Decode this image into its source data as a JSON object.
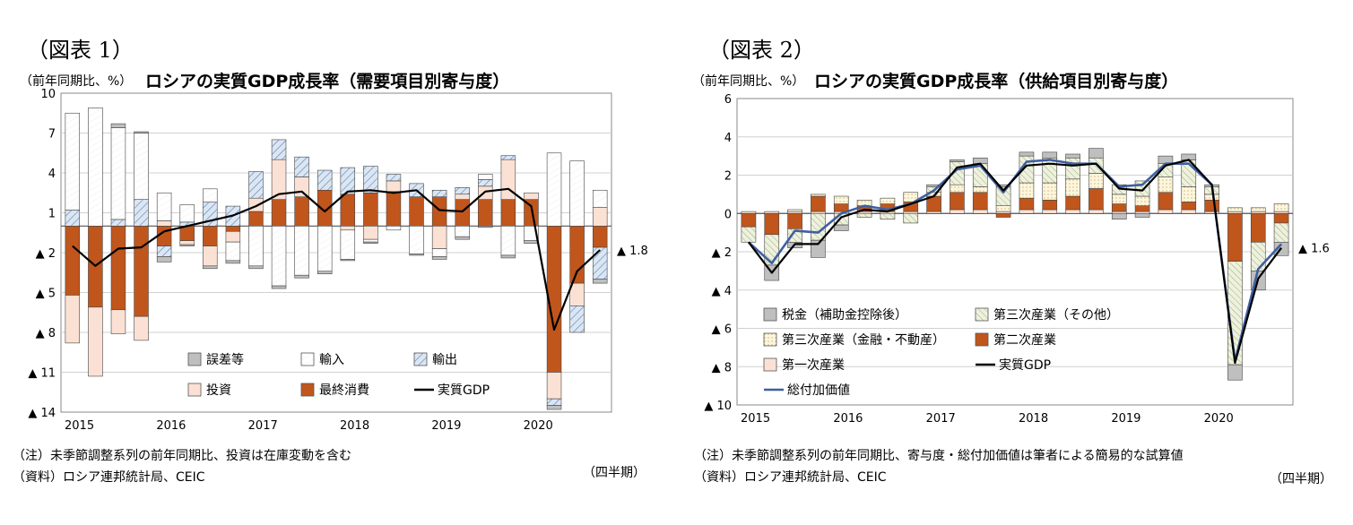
{
  "chart_data": [
    {
      "type": "bar",
      "fig_label": "（図表 1）",
      "title": "ロシアの実質GDP成長率（需要項目別寄与度）",
      "ylabel": "（前年同期比、%）",
      "ylim": [
        -14,
        10
      ],
      "yticks": [
        10,
        7,
        4,
        1,
        -2,
        -5,
        -8,
        -11,
        -14
      ],
      "ytick_labels": [
        "10",
        "7",
        "4",
        "1",
        "▲ 2",
        "▲ 5",
        "▲ 8",
        "▲ 11",
        "▲ 14"
      ],
      "year_labels": [
        "2015",
        "2016",
        "2017",
        "2018",
        "2019",
        "2020"
      ],
      "stack_order": [
        "最終消費",
        "投資",
        "輸出",
        "輸入",
        "誤差等"
      ],
      "series": [
        {
          "name": "最終消費",
          "color": "#c0561c",
          "values": [
            -5.2,
            -6.1,
            -6.3,
            -6.8,
            -1.5,
            -1.1,
            -1.5,
            -0.4,
            1.1,
            2.0,
            2.2,
            2.7,
            2.4,
            2.5,
            2.6,
            2.2,
            2.2,
            2.0,
            2.0,
            2.0,
            2.0,
            -11.0,
            -4.3,
            -1.6
          ]
        },
        {
          "name": "投資",
          "color": "#fbe1d4",
          "values": [
            -3.6,
            -5.2,
            -1.8,
            -1.8,
            0.4,
            -0.3,
            -1.5,
            -0.8,
            1.0,
            3.0,
            1.5,
            0.0,
            -0.3,
            -1.0,
            0.8,
            0.0,
            -1.7,
            0.4,
            1.0,
            3.0,
            0.5,
            -2.0,
            -1.7,
            1.4
          ]
        },
        {
          "name": "輸出",
          "color": "#ffffff",
          "values": [
            1.2,
            0.0,
            0.5,
            2.0,
            -0.8,
            0.3,
            1.8,
            1.5,
            2.0,
            1.5,
            1.5,
            1.5,
            2.0,
            2.0,
            0.5,
            1.0,
            0.5,
            0.5,
            0.5,
            0.3,
            0.0,
            -0.5,
            -2.0,
            -2.4
          ]
        },
        {
          "name": "輸入",
          "color": "#ffffff",
          "values": [
            7.3,
            8.9,
            6.9,
            5.0,
            2.1,
            1.3,
            1.0,
            -1.4,
            -3.0,
            -4.5,
            -3.7,
            -3.4,
            -2.2,
            -0.2,
            -0.3,
            -2.1,
            -0.6,
            -0.8,
            0.4,
            -2.2,
            -1.1,
            5.5,
            4.9,
            1.3
          ]
        },
        {
          "name": "誤差等",
          "color": "#bfbfbf",
          "values": [
            0,
            0,
            0.3,
            0.1,
            -0.4,
            -0.1,
            -0.2,
            -0.2,
            -0.2,
            -0.2,
            -0.2,
            -0.2,
            -0.1,
            -0.1,
            0,
            -0.1,
            -0.2,
            -0.2,
            -0.1,
            -0.2,
            -0.2,
            -0.3,
            0,
            -0.3
          ]
        }
      ],
      "line": {
        "name": "実質GDP",
        "color": "#000000",
        "values": [
          -1.5,
          -3.0,
          -1.7,
          -1.6,
          -0.4,
          0.0,
          0.4,
          0.8,
          1.5,
          2.4,
          2.6,
          1.1,
          2.6,
          2.7,
          2.5,
          2.7,
          1.2,
          1.1,
          2.6,
          2.8,
          1.5,
          -7.8,
          -3.4,
          -1.8
        ]
      },
      "annotation": "▲ 1.8",
      "legend": [
        {
          "name": "誤差等",
          "key": "misc"
        },
        {
          "name": "輸入",
          "key": "import"
        },
        {
          "name": "輸出",
          "key": "export"
        },
        {
          "name": "投資",
          "key": "invest"
        },
        {
          "name": "最終消費",
          "key": "consump"
        },
        {
          "name": "実質GDP",
          "key": "gdp"
        }
      ],
      "xlabel": "（四半期）",
      "notes": [
        "（注）未季節調整系列の前年同期比、投資は在庫変動を含む",
        "（資料）ロシア連邦統計局、CEIC"
      ]
    },
    {
      "type": "bar",
      "fig_label": "（図表 2）",
      "title": "ロシアの実質GDP成長率（供給項目別寄与度）",
      "ylabel": "（前年同期比、%）",
      "ylim": [
        -10,
        6
      ],
      "yticks": [
        6,
        4,
        2,
        0,
        -2,
        -4,
        -6,
        -8,
        -10
      ],
      "ytick_labels": [
        "6",
        "4",
        "2",
        "0",
        "▲ 2",
        "▲ 4",
        "▲ 6",
        "▲ 8",
        "▲ 10"
      ],
      "year_labels": [
        "2015",
        "2016",
        "2017",
        "2018",
        "2019",
        "2020"
      ],
      "stack_order": [
        "第一次産業",
        "第二次産業",
        "第三次産業（金融・不動産）",
        "第三次産業（その他）",
        "税金（補助金控除後）"
      ],
      "series": [
        {
          "name": "第一次産業",
          "color": "#fbe1d4",
          "values": [
            0.1,
            0.1,
            0.1,
            0.1,
            0.1,
            0.1,
            0.1,
            0.1,
            0.1,
            0.2,
            0.2,
            0.1,
            0.2,
            0.2,
            0.2,
            0.2,
            0.1,
            0.1,
            0.2,
            0.2,
            0.1,
            0.1,
            0.1,
            0.1
          ]
        },
        {
          "name": "第二次産業",
          "color": "#c0561c",
          "values": [
            -0.7,
            -1.1,
            -0.8,
            0.8,
            0.4,
            0.3,
            0.4,
            0.5,
            0.8,
            0.9,
            0.9,
            -0.2,
            0.6,
            0.5,
            0.7,
            1.1,
            0.4,
            0.3,
            0.9,
            0.4,
            0.6,
            -2.5,
            -1.5,
            -0.5
          ]
        },
        {
          "name": "第三次産業（金融・不動産）",
          "color": "#fdf6dc",
          "values": [
            0.0,
            0.0,
            0.1,
            0.1,
            0.4,
            0.3,
            0.3,
            0.5,
            0.2,
            0.4,
            0.3,
            0.3,
            0.8,
            0.9,
            0.9,
            0.8,
            0.5,
            0.5,
            0.8,
            0.8,
            0.3,
            0.2,
            0.2,
            0.4
          ]
        },
        {
          "name": "第三次産業（その他）",
          "color": "#ffffff",
          "values": [
            -0.8,
            -1.6,
            -0.7,
            -1.4,
            -0.6,
            -0.2,
            -0.3,
            -0.5,
            0.3,
            1.2,
            1.2,
            1.0,
            1.4,
            1.3,
            1.1,
            0.8,
            0.5,
            0.8,
            0.7,
            1.4,
            0.4,
            -5.4,
            -1.5,
            -1.0
          ]
        },
        {
          "name": "税金（補助金控除後）",
          "color": "#bfbfbf",
          "values": [
            0,
            -0.8,
            -0.3,
            -0.9,
            -0.3,
            0,
            0,
            0,
            0.1,
            0.1,
            0.3,
            0.1,
            0.2,
            0.3,
            0.2,
            0.5,
            -0.3,
            -0.2,
            0.4,
            0.3,
            0.1,
            -0.8,
            -1.0,
            -0.7
          ]
        }
      ],
      "line": {
        "name": "実質GDP",
        "color": "#000000",
        "values": [
          -1.5,
          -3.1,
          -1.6,
          -1.6,
          -0.2,
          0.2,
          0.1,
          0.5,
          0.9,
          2.4,
          2.6,
          1.2,
          2.5,
          2.6,
          2.5,
          2.6,
          1.3,
          1.2,
          2.5,
          2.8,
          1.5,
          -7.8,
          -3.4,
          -1.8
        ]
      },
      "line2": {
        "name": "総付加価値",
        "color": "#3f5f9f",
        "values": [
          -1.5,
          -2.6,
          -0.9,
          -1.0,
          0.0,
          0.4,
          0.2,
          0.5,
          1.2,
          2.3,
          2.5,
          1.1,
          2.7,
          2.8,
          2.6,
          2.6,
          1.4,
          1.5,
          2.6,
          2.6,
          1.5,
          -7.7,
          -2.9,
          -1.6
        ]
      },
      "annotation": "▲ 1.6",
      "legend": [
        {
          "name": "税金（補助金控除後）",
          "key": "tax"
        },
        {
          "name": "第三次産業（その他）",
          "key": "other"
        },
        {
          "name": "第三次産業（金融・不動産）",
          "key": "fin"
        },
        {
          "name": "第二次産業",
          "key": "ind"
        },
        {
          "name": "第一次産業",
          "key": "prim"
        },
        {
          "name": "実質GDP",
          "key": "gdp"
        },
        {
          "name": "総付加価値",
          "key": "gva"
        }
      ],
      "xlabel": "（四半期）",
      "notes": [
        "（注）未季節調整系列の前年同期比、寄与度・総付加価値は筆者による簡易的な試算値",
        "（資料）ロシア連邦統計局、CEIC"
      ]
    }
  ]
}
